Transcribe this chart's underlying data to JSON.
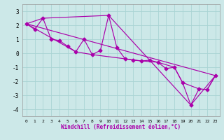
{
  "xlabel": "Windchill (Refroidissement éolien,°C)",
  "xlim": [
    -0.5,
    23.5
  ],
  "ylim": [
    -4.5,
    3.5
  ],
  "yticks": [
    -4,
    -3,
    -2,
    -1,
    0,
    1,
    2,
    3
  ],
  "xticks": [
    0,
    1,
    2,
    3,
    4,
    5,
    6,
    7,
    8,
    9,
    10,
    11,
    12,
    13,
    14,
    15,
    16,
    17,
    18,
    19,
    20,
    21,
    22,
    23
  ],
  "bg_color": "#cce8e8",
  "grid_color": "#aad4d4",
  "line_color": "#aa00aa",
  "series1_x": [
    0,
    1,
    2,
    3,
    4,
    5,
    6,
    7,
    8,
    9,
    10,
    11,
    12,
    13,
    14,
    15,
    16,
    17,
    18,
    19,
    20,
    21,
    22,
    23
  ],
  "series1_y": [
    2.1,
    1.7,
    2.5,
    1.0,
    0.9,
    0.5,
    0.1,
    1.0,
    -0.1,
    0.2,
    2.7,
    0.4,
    -0.4,
    -0.5,
    -0.55,
    -0.5,
    -0.65,
    -1.1,
    -1.0,
    -2.1,
    -3.7,
    -2.55,
    -2.6,
    -1.6
  ],
  "series2_x": [
    0,
    23
  ],
  "series2_y": [
    2.1,
    -1.6
  ],
  "series3_x": [
    0,
    2,
    10,
    20,
    23
  ],
  "series3_y": [
    2.1,
    2.5,
    2.7,
    -3.7,
    -1.6
  ],
  "series4_x": [
    0,
    6,
    8,
    12,
    14,
    16,
    18,
    19,
    21,
    22,
    23
  ],
  "series4_y": [
    2.1,
    0.1,
    -0.1,
    -0.4,
    -0.55,
    -0.65,
    -1.0,
    -2.1,
    -2.55,
    -2.6,
    -1.6
  ]
}
